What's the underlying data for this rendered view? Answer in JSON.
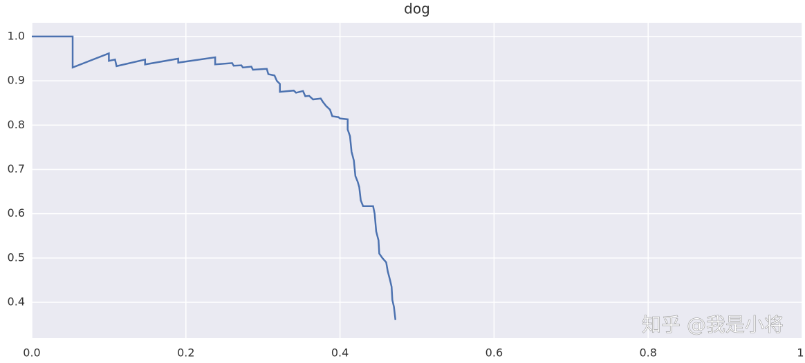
{
  "chart_data": {
    "type": "line",
    "title": "dog",
    "x": [
      0,
      0.053,
      0.053,
      0.1,
      0.1,
      0.108,
      0.11,
      0.147,
      0.147,
      0.19,
      0.19,
      0.238,
      0.238,
      0.26,
      0.262,
      0.272,
      0.274,
      0.285,
      0.287,
      0.305,
      0.307,
      0.315,
      0.318,
      0.322,
      0.322,
      0.34,
      0.343,
      0.352,
      0.355,
      0.36,
      0.365,
      0.375,
      0.378,
      0.382,
      0.387,
      0.39,
      0.398,
      0.4,
      0.41,
      0.41,
      0.413,
      0.415,
      0.418,
      0.42,
      0.423,
      0.425,
      0.427,
      0.43,
      0.443,
      0.445,
      0.447,
      0.45,
      0.451,
      0.455,
      0.46,
      0.462,
      0.465,
      0.467,
      0.468,
      0.47,
      0.472
    ],
    "series": [
      {
        "color": "#4c72b0",
        "values": [
          1.0,
          1.0,
          0.93,
          0.962,
          0.945,
          0.948,
          0.933,
          0.948,
          0.937,
          0.95,
          0.941,
          0.953,
          0.937,
          0.94,
          0.934,
          0.935,
          0.93,
          0.932,
          0.925,
          0.927,
          0.915,
          0.912,
          0.9,
          0.893,
          0.875,
          0.878,
          0.873,
          0.877,
          0.865,
          0.866,
          0.858,
          0.86,
          0.852,
          0.843,
          0.835,
          0.82,
          0.818,
          0.815,
          0.813,
          0.79,
          0.775,
          0.74,
          0.72,
          0.685,
          0.672,
          0.66,
          0.63,
          0.617,
          0.617,
          0.6,
          0.56,
          0.54,
          0.51,
          0.5,
          0.49,
          0.47,
          0.45,
          0.435,
          0.405,
          0.39,
          0.36
        ]
      }
    ],
    "xlim": [
      0,
      1.0
    ],
    "ylim": [
      0.319,
      1.031
    ],
    "xticks": [
      {
        "value": 0,
        "label": "0.0"
      },
      0.2,
      0.4,
      0.6,
      0.8,
      {
        "value": 1,
        "label": "1."
      }
    ],
    "yticks": [
      0.4,
      0.5,
      0.6,
      0.7,
      0.8,
      0.9,
      {
        "value": 1,
        "label": "1.0"
      }
    ],
    "grid": true,
    "background": "#eaeaf2",
    "watermark": "知乎 @我是小将"
  }
}
